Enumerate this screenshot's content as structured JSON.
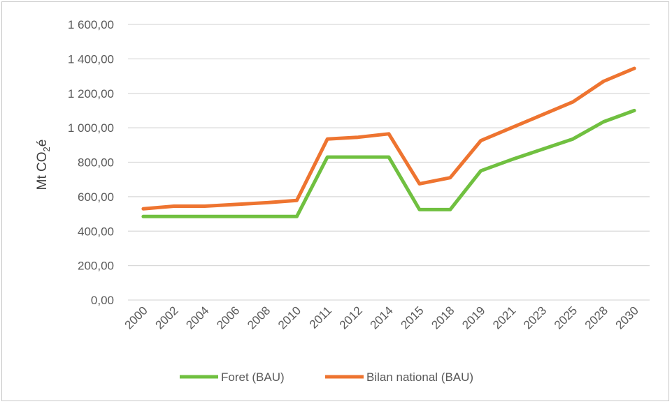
{
  "chart_data": {
    "type": "line",
    "title": "",
    "xlabel": "",
    "ylabel": "Mt CO",
    "ylabel_sub": "2",
    "ylabel_suffix": "é",
    "ylim": [
      0,
      1600
    ],
    "yticks": [
      0,
      200,
      400,
      600,
      800,
      1000,
      1200,
      1400,
      1600
    ],
    "ytick_labels": [
      "0,00",
      "200,00",
      "400,00",
      "600,00",
      "800,00",
      "1 000,00",
      "1 200,00",
      "1 400,00",
      "1 600,00"
    ],
    "categories": [
      "2000",
      "2002",
      "2004",
      "2006",
      "2008",
      "2010",
      "2011",
      "2012",
      "2014",
      "2015",
      "2018",
      "2019",
      "2021",
      "2023",
      "2025",
      "2028",
      "2030"
    ],
    "grid": "horizontal",
    "legend_position": "bottom",
    "series": [
      {
        "name": "Foret (BAU)",
        "color": "#70c040",
        "values": [
          485,
          485,
          485,
          485,
          485,
          485,
          830,
          830,
          830,
          525,
          525,
          750,
          815,
          875,
          935,
          1035,
          1100
        ]
      },
      {
        "name": "Bilan national (BAU)",
        "color": "#ee7430",
        "values": [
          530,
          545,
          545,
          555,
          565,
          578,
          935,
          945,
          965,
          675,
          710,
          925,
          1000,
          1075,
          1150,
          1270,
          1345
        ]
      }
    ]
  }
}
